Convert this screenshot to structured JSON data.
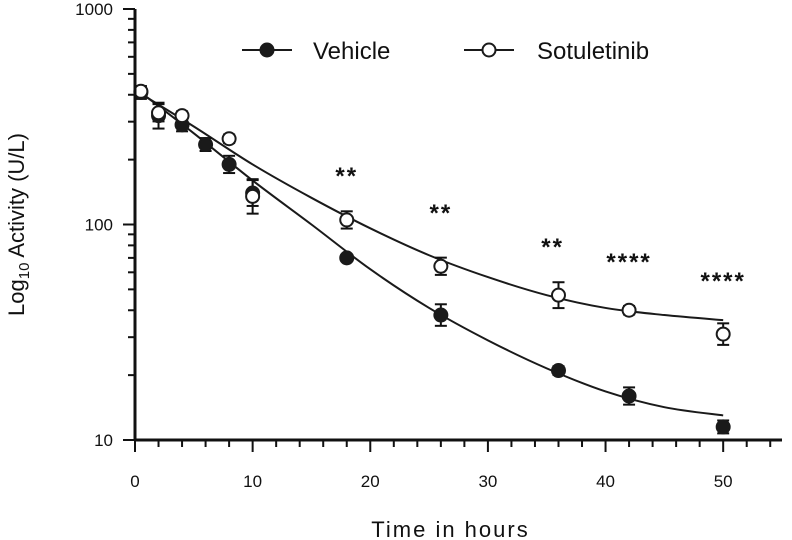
{
  "chart_data": {
    "type": "scatter",
    "xlabel": "Time in hours",
    "ylabel_main": "Log",
    "ylabel_sub": "10",
    "ylabel_rest": " Activity (U/L)",
    "xlim": [
      0,
      55
    ],
    "ylim": [
      10,
      1000
    ],
    "yscale": "log",
    "xticks": [
      0,
      10,
      20,
      30,
      40,
      50
    ],
    "yticks": [
      10,
      100,
      1000
    ],
    "legend_position": "top",
    "series": [
      {
        "name": "Vehicle",
        "marker": "filled-circle",
        "color": "#1a1a1a",
        "x": [
          0.5,
          2,
          4,
          6,
          8,
          10,
          18,
          26,
          36,
          42,
          50
        ],
        "y": [
          410,
          320,
          290,
          235,
          190,
          140,
          70,
          38,
          21,
          16,
          11.5
        ],
        "err": [
          0.03,
          0.06,
          0.03,
          0.03,
          0.04,
          0.06,
          0.01,
          0.05,
          0.02,
          0.04,
          0.03
        ],
        "fit": [
          [
            0,
            430
          ],
          [
            5,
            265
          ],
          [
            10,
            160
          ],
          [
            15,
            100
          ],
          [
            20,
            62
          ],
          [
            25,
            41
          ],
          [
            30,
            29
          ],
          [
            35,
            21.5
          ],
          [
            40,
            16.8
          ],
          [
            45,
            14.2
          ],
          [
            50,
            13
          ]
        ]
      },
      {
        "name": "Sotuletinib",
        "marker": "open-circle",
        "color": "#1a1a1a",
        "x": [
          0.5,
          2,
          4,
          8,
          10,
          18,
          26,
          36,
          42,
          50
        ],
        "y": [
          415,
          330,
          320,
          250,
          135,
          105,
          64,
          47,
          40,
          31
        ],
        "err": [
          0.02,
          0.04,
          0.02,
          0.02,
          0.08,
          0.04,
          0.04,
          0.06,
          0.02,
          0.05
        ],
        "fit": [
          [
            0,
            420
          ],
          [
            5,
            285
          ],
          [
            10,
            190
          ],
          [
            15,
            133
          ],
          [
            20,
            96
          ],
          [
            25,
            72
          ],
          [
            30,
            57
          ],
          [
            35,
            47
          ],
          [
            40,
            41
          ],
          [
            45,
            38
          ],
          [
            50,
            36
          ]
        ]
      }
    ],
    "annotations": [
      {
        "x": 18,
        "y": 175,
        "text": "**"
      },
      {
        "x": 26,
        "y": 118,
        "text": "**"
      },
      {
        "x": 35.5,
        "y": 82,
        "text": "**"
      },
      {
        "x": 42,
        "y": 70,
        "text": "****"
      },
      {
        "x": 50,
        "y": 57,
        "text": "****"
      }
    ]
  }
}
